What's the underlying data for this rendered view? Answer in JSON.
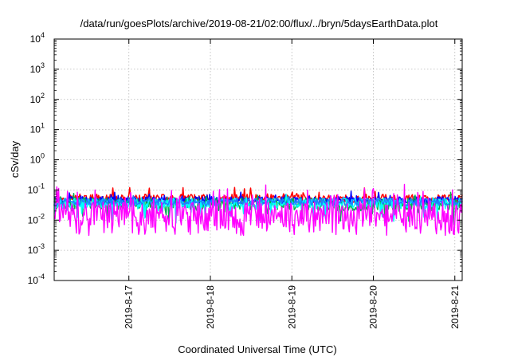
{
  "chart_data": {
    "type": "line",
    "title": "/data/run/goesPlots/archive/2019-08-21/02:00/flux/../bryn/5daysEarthData.plot",
    "xlabel": "Coordinated Universal Time (UTC)",
    "ylabel": "cSv/day",
    "yscale": "log",
    "ylim": [
      0.0001,
      10000
    ],
    "xlim": [
      "2019-08-16 02:00",
      "2019-08-21 02:10"
    ],
    "y_ticks": [
      {
        "mantissa": "10",
        "exponent": "-4",
        "value": 0.0001
      },
      {
        "mantissa": "10",
        "exponent": "-3",
        "value": 0.001
      },
      {
        "mantissa": "10",
        "exponent": "-2",
        "value": 0.01
      },
      {
        "mantissa": "10",
        "exponent": "-1",
        "value": 0.1
      },
      {
        "mantissa": "10",
        "exponent": "0",
        "value": 1
      },
      {
        "mantissa": "10",
        "exponent": "1",
        "value": 10
      },
      {
        "mantissa": "10",
        "exponent": "2",
        "value": 100
      },
      {
        "mantissa": "10",
        "exponent": "3",
        "value": 1000
      },
      {
        "mantissa": "10",
        "exponent": "4",
        "value": 10000
      }
    ],
    "x_ticks": [
      {
        "label": "2019-8-17",
        "value": "2019-08-17 00:00"
      },
      {
        "label": "2019-8-18",
        "value": "2019-08-18 00:00"
      },
      {
        "label": "2019-8-19",
        "value": "2019-08-19 00:00"
      },
      {
        "label": "2019-8-20",
        "value": "2019-08-20 00:00"
      },
      {
        "label": "2019-8-21",
        "value": "2019-08-21 00:00"
      }
    ],
    "grid": true,
    "legend": "none",
    "series": [
      {
        "color": "#ff0000",
        "center": 0.052,
        "spread": 0.14,
        "spike": 0.28,
        "dips": false
      },
      {
        "color": "#0000ff",
        "center": 0.045,
        "spread": 0.13,
        "spike": 0.25,
        "dips": false
      },
      {
        "color": "#00b050",
        "center": 0.034,
        "spread": 0.22,
        "spike": 0.2,
        "dips": true
      },
      {
        "color": "#00ffff",
        "center": 0.036,
        "spread": 0.18,
        "spike": 0.18,
        "dips": true
      },
      {
        "color": "#1e7fff",
        "center": 0.04,
        "spread": 0.12,
        "spike": 0.16,
        "dips": false
      },
      {
        "color": "#ff00ff",
        "center": 0.011,
        "spread": 0.55,
        "spike": 0.35,
        "dips": false
      }
    ]
  }
}
